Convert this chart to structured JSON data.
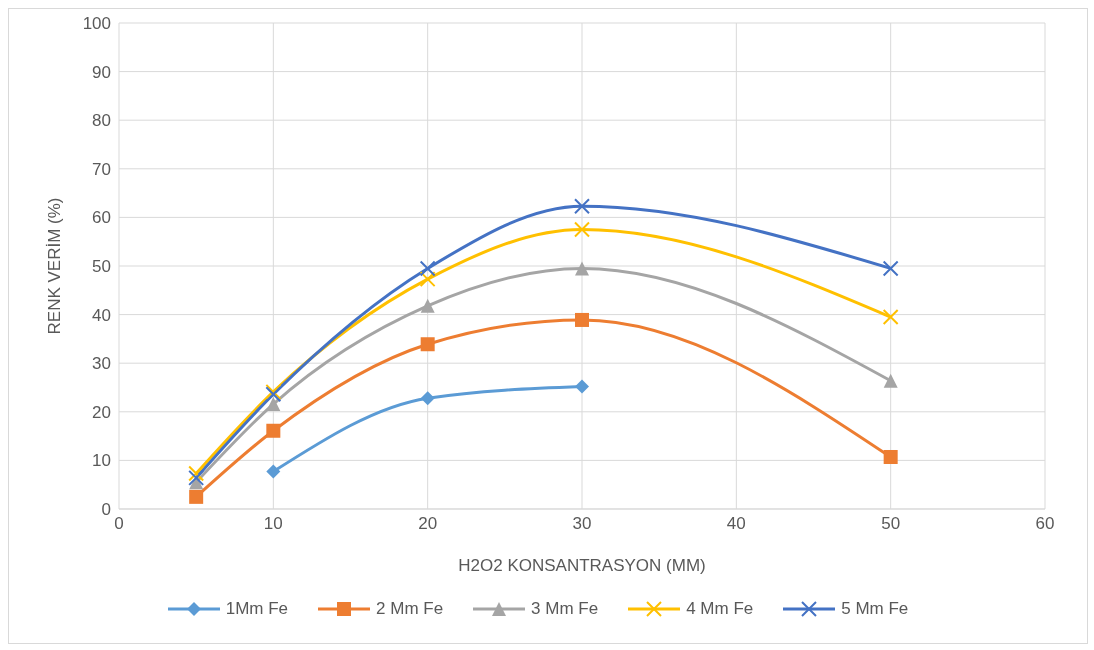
{
  "chart_data": {
    "type": "line",
    "xlabel": "H2O2 KONSANTRASYON (MM)",
    "ylabel": "RENK VERİM (%)",
    "x": [
      5,
      10,
      20,
      30,
      50
    ],
    "series": [
      {
        "name": "1Mm Fe",
        "color": "#5b9bd5",
        "marker": "diamond",
        "values": [
          null,
          7.7,
          22.8,
          25.2,
          null
        ]
      },
      {
        "name": "2 Mm Fe",
        "color": "#ed7d31",
        "marker": "square",
        "values": [
          2.5,
          16.1,
          33.9,
          38.9,
          10.7
        ]
      },
      {
        "name": "3 Mm Fe",
        "color": "#a5a5a5",
        "marker": "triangle",
        "values": [
          5.5,
          21.6,
          41.8,
          49.5,
          26.4
        ]
      },
      {
        "name": "4 Mm Fe",
        "color": "#ffc000",
        "marker": "cross",
        "values": [
          7.3,
          24.1,
          47.3,
          57.5,
          39.5
        ]
      },
      {
        "name": "5 Mm Fe",
        "color": "#4472c4",
        "marker": "cross",
        "values": [
          6.4,
          23.6,
          49.5,
          62.3,
          49.5
        ]
      }
    ],
    "xlim": [
      0,
      60
    ],
    "xticks": [
      0,
      10,
      20,
      30,
      40,
      50,
      60
    ],
    "ylim": [
      0,
      100
    ],
    "yticks": [
      0,
      10,
      20,
      30,
      40,
      50,
      60,
      70,
      80,
      90,
      100
    ],
    "grid": true,
    "legend": "bottom",
    "line_style": "solid"
  }
}
